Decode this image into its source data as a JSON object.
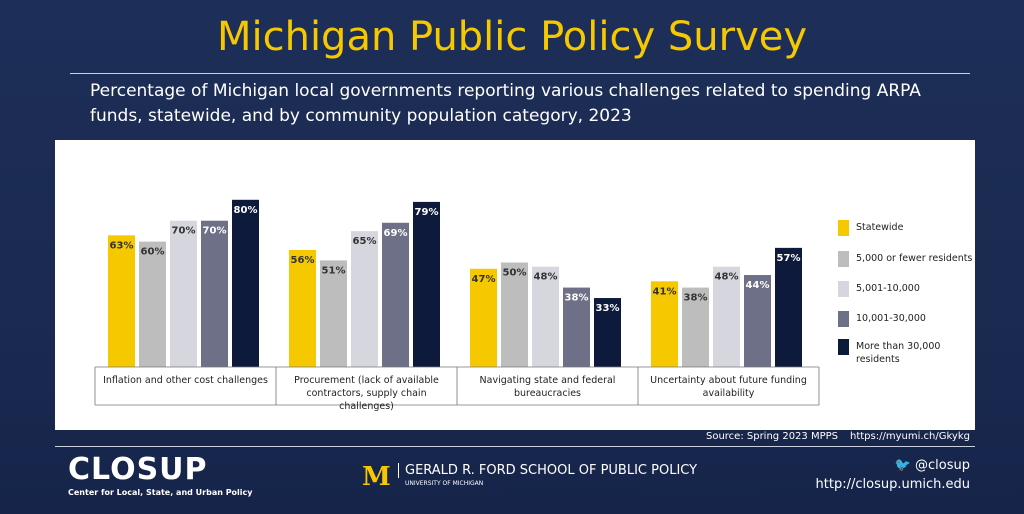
{
  "header": {
    "title": "Michigan Public Policy Survey",
    "subtitle": "Percentage of Michigan local governments reporting various challenges related to spending ARPA funds, statewide, and by community population category, 2023"
  },
  "chart_data": {
    "type": "bar",
    "categories": [
      "Inflation and other cost challenges",
      "Procurement (lack of available contractors, supply chain challenges)",
      "Navigating state and federal bureaucracies",
      "Uncertainty about future funding availability"
    ],
    "series": [
      {
        "name": "Statewide",
        "color": "#f5c800",
        "values": [
          63,
          56,
          47,
          41
        ],
        "value_labels": [
          "63%",
          "56%",
          "47%",
          "41%"
        ]
      },
      {
        "name": "5,000 or fewer residents",
        "color": "#bdbdbd",
        "values": [
          60,
          51,
          50,
          38
        ],
        "value_labels": [
          "60%",
          "51%",
          "50%",
          "38%"
        ]
      },
      {
        "name": "5,001-10,000",
        "color": "#d6d6de",
        "values": [
          70,
          65,
          48,
          48
        ],
        "value_labels": [
          "70%",
          "65%",
          "48%",
          "48%"
        ]
      },
      {
        "name": "10,001-30,000",
        "color": "#6d7086",
        "values": [
          70,
          69,
          38,
          44
        ],
        "value_labels": [
          "70%",
          "69%",
          "38%",
          "44%"
        ]
      },
      {
        "name": "More than 30,000 residents",
        "color": "#0e1a3b",
        "values": [
          80,
          79,
          33,
          57
        ],
        "value_labels": [
          "80%",
          "79%",
          "33%",
          "57%"
        ]
      }
    ],
    "ylim": [
      0,
      100
    ],
    "legend": "right"
  },
  "source": {
    "text": "Source: Spring 2023 MPPS",
    "url": "https://myumi.ch/Gkykg"
  },
  "footer": {
    "logo": "CLOSUP",
    "logo_sub": "Center for Local, State, and Urban Policy",
    "school": "GERALD R. FORD SCHOOL OF PUBLIC POLICY",
    "university": "UNIVERSITY OF MICHIGAN",
    "twitter": "@closup",
    "website": "http://closup.umich.edu"
  }
}
